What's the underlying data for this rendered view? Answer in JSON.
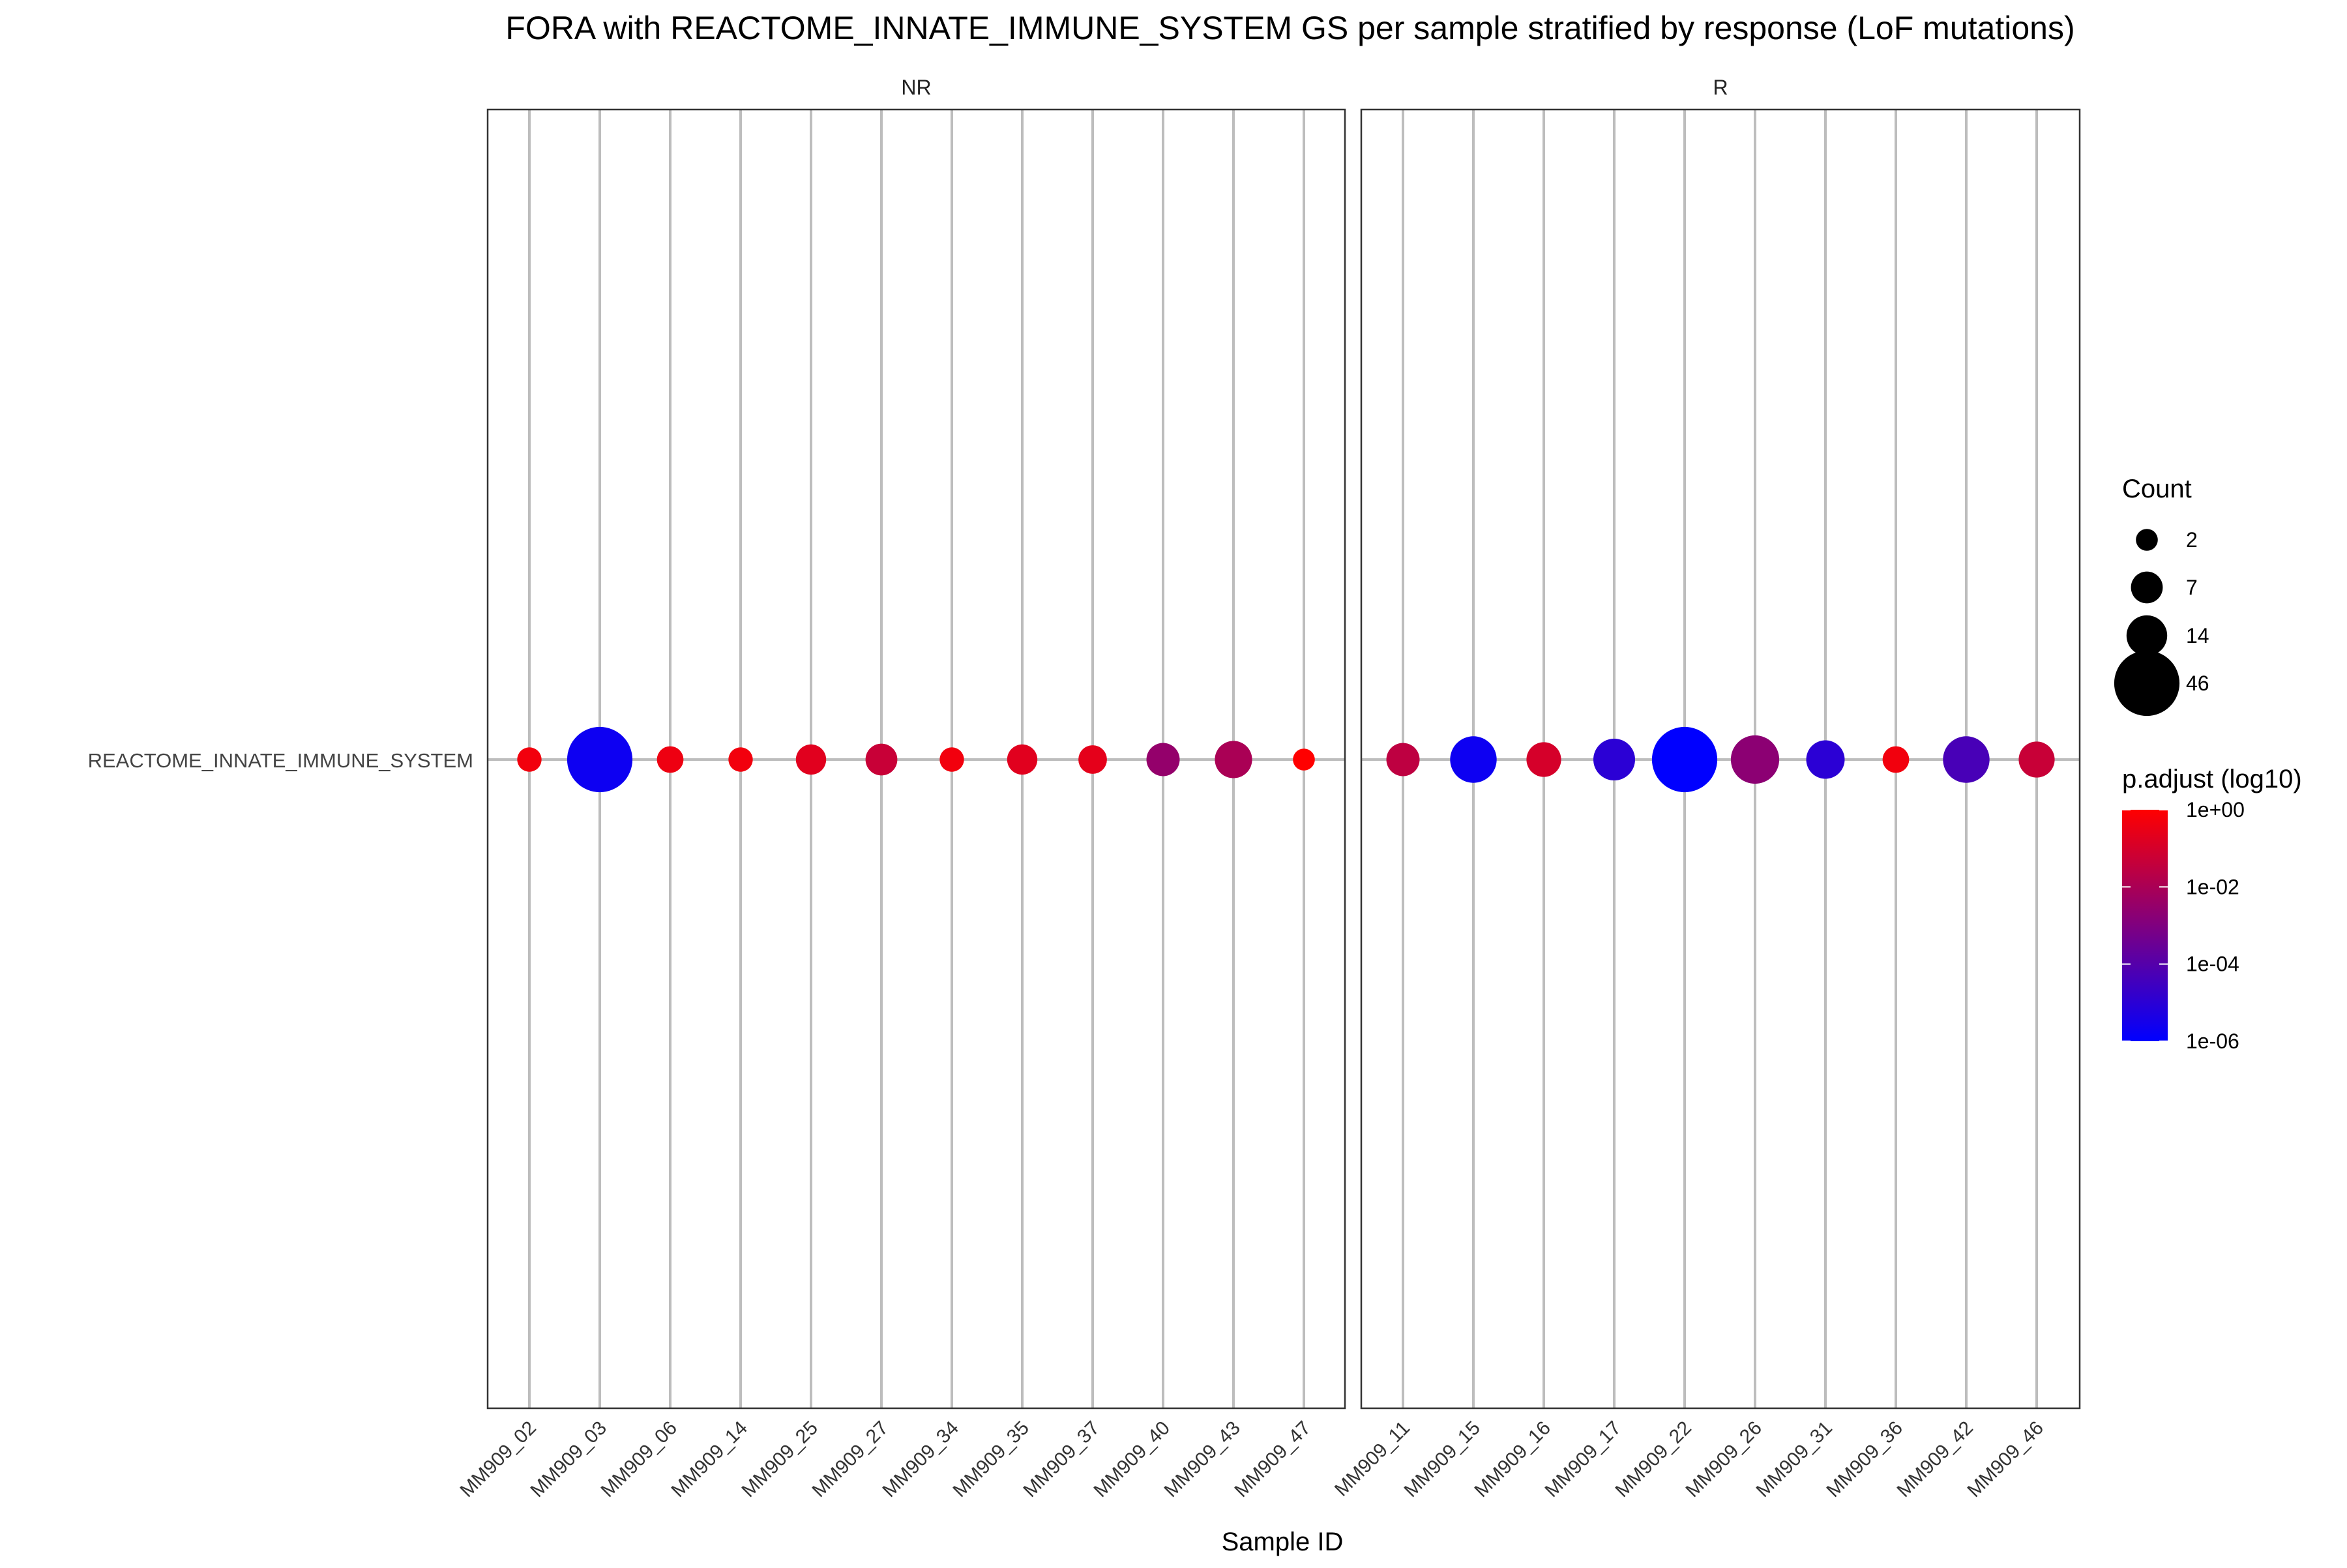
{
  "chart_data": {
    "type": "scatter",
    "title": "FORA with REACTOME_INNATE_IMMUNE_SYSTEM GS per sample stratified by response (LoF mutations)",
    "xlabel": "Sample ID",
    "ylabel": "",
    "y_categories": [
      "REACTOME_INNATE_IMMUNE_SYSTEM"
    ],
    "grid": true,
    "legend_position": "right",
    "facets": [
      {
        "label": "NR",
        "categories": [
          "MM909_02",
          "MM909_03",
          "MM909_06",
          "MM909_14",
          "MM909_25",
          "MM909_27",
          "MM909_34",
          "MM909_35",
          "MM909_37",
          "MM909_40",
          "MM909_43",
          "MM909_47"
        ],
        "points": [
          {
            "sample": "MM909_02",
            "count": 3,
            "p_adjust": 0.5
          },
          {
            "sample": "MM909_03",
            "count": 46,
            "p_adjust": 2e-06
          },
          {
            "sample": "MM909_06",
            "count": 4,
            "p_adjust": 0.4
          },
          {
            "sample": "MM909_14",
            "count": 3,
            "p_adjust": 0.5
          },
          {
            "sample": "MM909_25",
            "count": 6,
            "p_adjust": 0.2
          },
          {
            "sample": "MM909_27",
            "count": 7,
            "p_adjust": 0.05
          },
          {
            "sample": "MM909_34",
            "count": 3,
            "p_adjust": 0.5
          },
          {
            "sample": "MM909_35",
            "count": 6,
            "p_adjust": 0.2
          },
          {
            "sample": "MM909_37",
            "count": 5,
            "p_adjust": 0.25
          },
          {
            "sample": "MM909_40",
            "count": 8,
            "p_adjust": 0.003
          },
          {
            "sample": "MM909_43",
            "count": 11,
            "p_adjust": 0.01
          },
          {
            "sample": "MM909_47",
            "count": 2,
            "p_adjust": 1.0
          }
        ]
      },
      {
        "label": "R",
        "categories": [
          "MM909_11",
          "MM909_15",
          "MM909_16",
          "MM909_17",
          "MM909_22",
          "MM909_26",
          "MM909_31",
          "MM909_36",
          "MM909_42",
          "MM909_46"
        ],
        "points": [
          {
            "sample": "MM909_11",
            "count": 8,
            "p_adjust": 0.03
          },
          {
            "sample": "MM909_15",
            "count": 20,
            "p_adjust": 2e-06
          },
          {
            "sample": "MM909_16",
            "count": 9,
            "p_adjust": 0.1
          },
          {
            "sample": "MM909_17",
            "count": 15,
            "p_adjust": 1e-05
          },
          {
            "sample": "MM909_22",
            "count": 46,
            "p_adjust": 1e-06
          },
          {
            "sample": "MM909_26",
            "count": 22,
            "p_adjust": 0.002
          },
          {
            "sample": "MM909_31",
            "count": 12,
            "p_adjust": 1e-05
          },
          {
            "sample": "MM909_36",
            "count": 4,
            "p_adjust": 0.5
          },
          {
            "sample": "MM909_42",
            "count": 20,
            "p_adjust": 5e-05
          },
          {
            "sample": "MM909_46",
            "count": 10,
            "p_adjust": 0.05
          }
        ]
      }
    ],
    "size_legend": {
      "title": "Count",
      "breaks": [
        2,
        7,
        14,
        46
      ],
      "labels": [
        "2",
        "7",
        "14",
        "46"
      ]
    },
    "color_legend": {
      "title": "p.adjust (log10)",
      "low_color": "#0000ff",
      "high_color": "#ff0000",
      "range": [
        1e-06,
        1
      ],
      "log_scale": true,
      "breaks": [
        1,
        0.01,
        0.0001,
        1e-06
      ],
      "labels": [
        "1e+00",
        "1e-02",
        "1e-04",
        "1e-06"
      ]
    }
  }
}
